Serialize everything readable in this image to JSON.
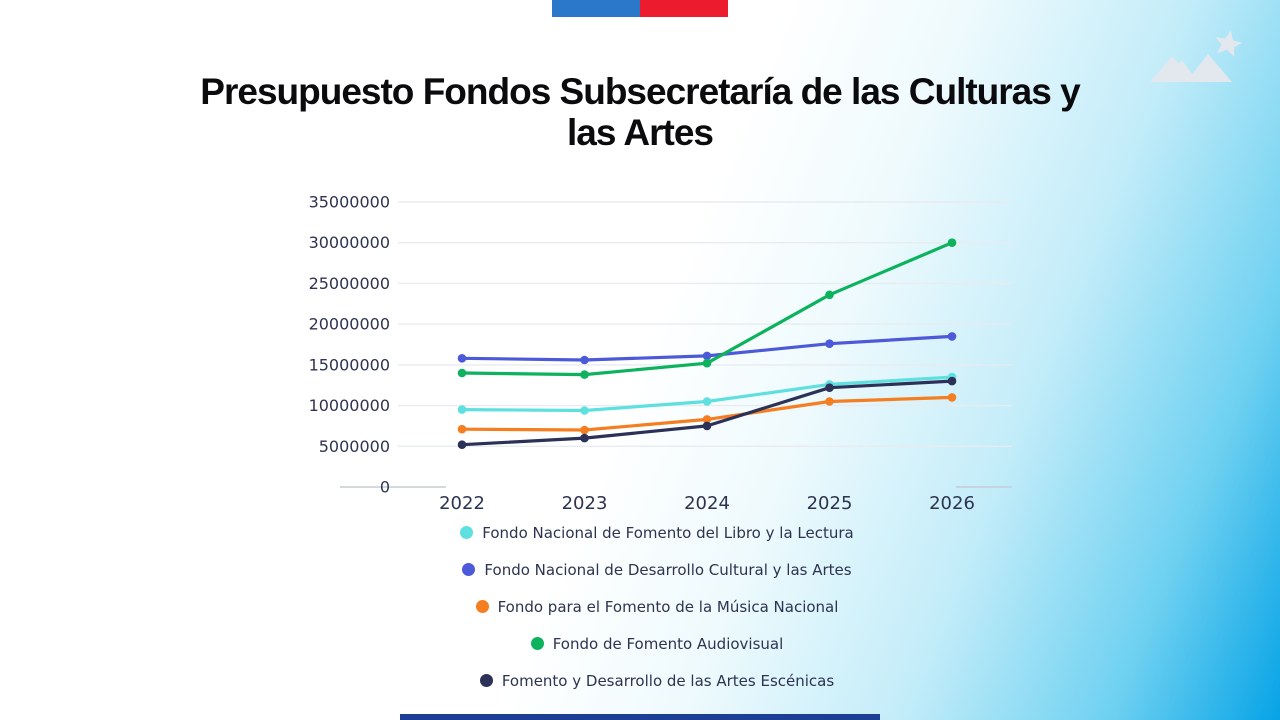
{
  "page": {
    "background_gradient": [
      "#ffffff",
      "#06a3e6"
    ]
  },
  "header": {
    "flag_colors": {
      "blue": "#2b77c9",
      "red": "#ec1b2d"
    },
    "logo_icon": "mountains-star-icon",
    "logo_color": "#e2e8ee",
    "title_lines": [
      "Presupuesto Fondos Subsecretaría de las Culturas y",
      "las Artes"
    ]
  },
  "chart_data": {
    "type": "line",
    "title": "Presupuesto Fondos Subsecretaría de las Culturas y las Artes",
    "x": [
      2022,
      2023,
      2024,
      2025,
      2026
    ],
    "series": [
      {
        "name": "Fondo Nacional de Fomento del Libro y la Lectura",
        "color": "#5ee0e0",
        "values": [
          9500000,
          9400000,
          10500000,
          12600000,
          13500000
        ]
      },
      {
        "name": "Fondo Nacional de Desarrollo Cultural y las Artes",
        "color": "#4c59d8",
        "values": [
          15800000,
          15600000,
          16100000,
          17600000,
          18500000
        ]
      },
      {
        "name": "Fondo para el Fomento de la Música Nacional",
        "color": "#f57e20",
        "values": [
          7100000,
          7000000,
          8300000,
          10500000,
          11000000
        ]
      },
      {
        "name": "Fondo de Fomento Audiovisual",
        "color": "#0db25e",
        "values": [
          14000000,
          13800000,
          15200000,
          23600000,
          30000000
        ]
      },
      {
        "name": "Fomento y Desarrollo de las Artes Escénicas",
        "color": "#2c3157",
        "values": [
          5200000,
          6000000,
          7500000,
          12200000,
          13000000
        ]
      }
    ],
    "yticks": [
      35000000,
      30000000,
      25000000,
      20000000,
      15000000,
      10000000,
      5000000,
      0
    ],
    "ylim": [
      0,
      35000000
    ],
    "grid": true,
    "grid_color": "#e8ebf0",
    "zero_tick_color": "#c6ccd6",
    "axis_color": "#2e3350",
    "legend_position": "bottom"
  },
  "footer": {
    "bar_color": "#1c3e94"
  }
}
